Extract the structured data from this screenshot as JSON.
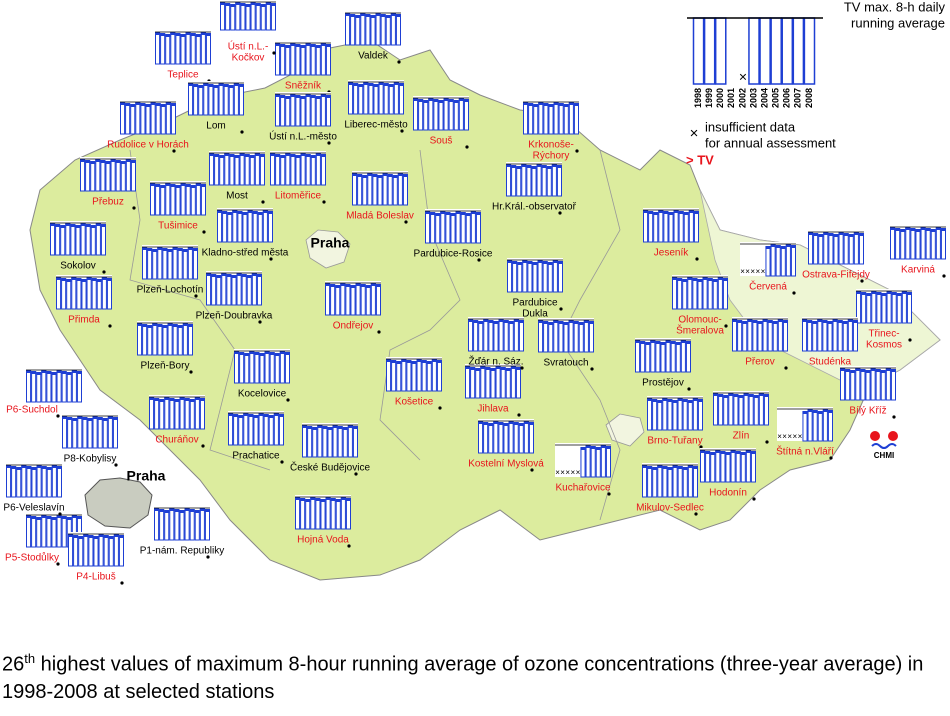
{
  "legend": {
    "title_lines": [
      "TV max. 8-h daily",
      "running average"
    ],
    "years": [
      1998,
      1999,
      2000,
      2001,
      2002,
      2003,
      2004,
      2005,
      2006,
      2007,
      2008
    ],
    "insufficient_lines": [
      "insufficient data",
      "for annual assessment"
    ],
    "above_tv": "> TV"
  },
  "stations": [
    {
      "lines": [
        "Teplice"
      ],
      "color": "#e8141c"
    },
    {
      "lines": [
        "Sněžník"
      ],
      "color": "#e8141c"
    },
    {
      "lines": [
        "Ústí n.L.-",
        "Kočkov"
      ],
      "color": "#e8141c"
    },
    {
      "lines": [
        "Rudolice v Horách"
      ],
      "color": "#e8141c"
    },
    {
      "lines": [
        "Přebuz"
      ],
      "color": "#e8141c"
    },
    {
      "lines": [
        "Tušimice"
      ],
      "color": "#e8141c"
    },
    {
      "lines": [
        "Litoměřice"
      ],
      "color": "#e8141c"
    },
    {
      "lines": [
        "Mladá Boleslav"
      ],
      "color": "#e8141c"
    },
    {
      "lines": [
        "Souš"
      ],
      "color": "#e8141c"
    },
    {
      "lines": [
        "Krkonoše-",
        "Rýchory"
      ],
      "color": "#e8141c"
    },
    {
      "lines": [
        "Jeseník"
      ],
      "color": "#e8141c"
    },
    {
      "lines": [
        "Červená"
      ],
      "color": "#e8141c"
    },
    {
      "lines": [
        "Ostrava-Fifejdy"
      ],
      "color": "#e8141c"
    },
    {
      "lines": [
        "Karviná"
      ],
      "color": "#e8141c"
    },
    {
      "lines": [
        "Přimda"
      ],
      "color": "#e8141c"
    },
    {
      "lines": [
        "Ondřejov"
      ],
      "color": "#e8141c"
    },
    {
      "lines": [
        "Olomouc-",
        "Šmeralova"
      ],
      "color": "#e8141c"
    },
    {
      "lines": [
        "Třinec-",
        "Kosmos"
      ],
      "color": "#e8141c"
    },
    {
      "lines": [
        "Přerov"
      ],
      "color": "#e8141c"
    },
    {
      "lines": [
        "Studénka"
      ],
      "color": "#e8141c"
    },
    {
      "lines": [
        "Košetice"
      ],
      "color": "#e8141c"
    },
    {
      "lines": [
        "Jihlava"
      ],
      "color": "#e8141c"
    },
    {
      "lines": [
        "Bílý Kříž"
      ],
      "color": "#e8141c"
    },
    {
      "lines": [
        "Churáňov"
      ],
      "color": "#e8141c"
    },
    {
      "lines": [
        "Zlín"
      ],
      "color": "#e8141c"
    },
    {
      "lines": [
        "Brno-Tuřany"
      ],
      "color": "#e8141c"
    },
    {
      "lines": [
        "Štítná n.Vláří"
      ],
      "color": "#e8141c"
    },
    {
      "lines": [
        "Kostelní Myslová"
      ],
      "color": "#e8141c"
    },
    {
      "lines": [
        "Kuchařovice"
      ],
      "color": "#e8141c"
    },
    {
      "lines": [
        "Hodonín"
      ],
      "color": "#e8141c"
    },
    {
      "lines": [
        "Mikulov-Sedlec"
      ],
      "color": "#e8141c"
    },
    {
      "lines": [
        "Hojná Voda"
      ],
      "color": "#e8141c"
    },
    {
      "lines": [
        "P6-Suchdol"
      ],
      "color": "#e8141c"
    },
    {
      "lines": [
        "P5-Stodůlky"
      ],
      "color": "#e8141c"
    },
    {
      "lines": [
        "P4-Libuš"
      ],
      "color": "#e8141c"
    },
    {
      "lines": [
        "Valdek"
      ],
      "color": "#000000"
    },
    {
      "lines": [
        "Lom"
      ],
      "color": "#000000"
    },
    {
      "lines": [
        "Ústí n.L.-město"
      ],
      "color": "#000000"
    },
    {
      "lines": [
        "Liberec-město"
      ],
      "color": "#000000"
    },
    {
      "lines": [
        "Most"
      ],
      "color": "#000000"
    },
    {
      "lines": [
        "Hr.Král.-observatoř"
      ],
      "color": "#000000"
    },
    {
      "lines": [
        "Kladno-střed města"
      ],
      "color": "#000000"
    },
    {
      "lines": [
        "Pardubice-Rosice"
      ],
      "color": "#000000"
    },
    {
      "lines": [
        "Sokolov"
      ],
      "color": "#000000"
    },
    {
      "lines": [
        "Plzeň-Lochotín"
      ],
      "color": "#000000"
    },
    {
      "lines": [
        "Pardubice",
        "Dukla"
      ],
      "color": "#000000"
    },
    {
      "lines": [
        "Plzeň-Doubravka"
      ],
      "color": "#000000"
    },
    {
      "lines": [
        "Plzeň-Bory"
      ],
      "color": "#000000"
    },
    {
      "lines": [
        "Žďár n. Sáz."
      ],
      "color": "#000000"
    },
    {
      "lines": [
        "Svratouch"
      ],
      "color": "#000000"
    },
    {
      "lines": [
        "Prostějov"
      ],
      "color": "#000000"
    },
    {
      "lines": [
        "Kocelovice"
      ],
      "color": "#000000"
    },
    {
      "lines": [
        "Prachatice"
      ],
      "color": "#000000"
    },
    {
      "lines": [
        "České Budějovice"
      ],
      "color": "#000000"
    },
    {
      "lines": [
        "P8-Kobylisy"
      ],
      "color": "#000000"
    },
    {
      "lines": [
        "P6-Veleslavín"
      ],
      "color": "#000000"
    },
    {
      "lines": [
        "P1-nám. Republiky"
      ],
      "color": "#000000"
    }
  ],
  "city_labels": [
    "Praha",
    "Praha"
  ],
  "logo": "CHMI",
  "caption": {
    "number": "26",
    "suffix": "th",
    "text": " highest values of maximum 8-hour running average of ozone concentrations (three-year average) in 1998-2008 at selected stations"
  }
}
